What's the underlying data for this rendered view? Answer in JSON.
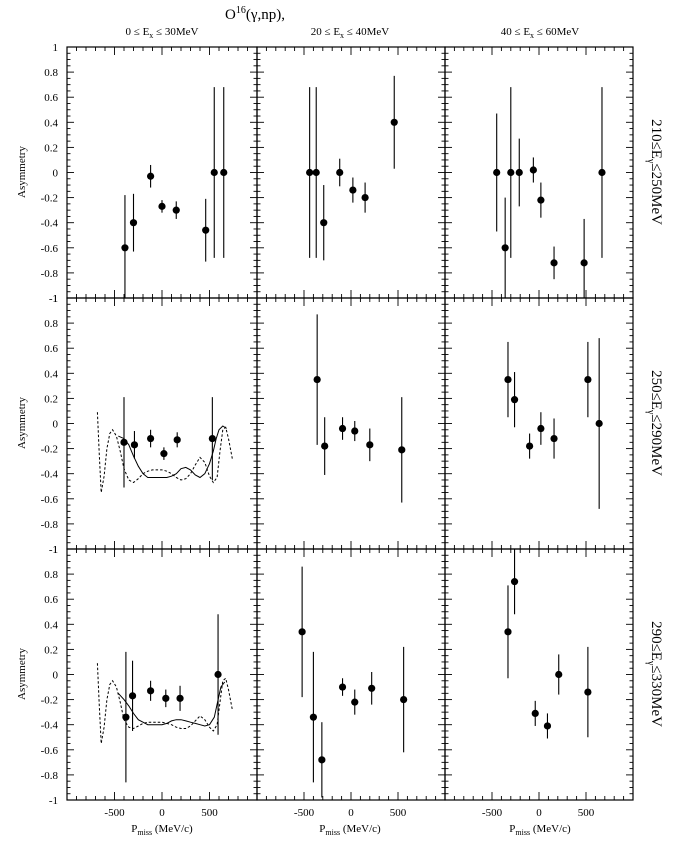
{
  "title": {
    "main": "O",
    "sup": "16",
    "rest": "(γ,np),"
  },
  "column_labels": [
    {
      "pre": "0 ≤ E",
      "sub": "x",
      "post": " ≤ 30MeV"
    },
    {
      "pre": "20 ≤ E",
      "sub": "x",
      "post": " ≤ 40MeV"
    },
    {
      "pre": "40 ≤ E",
      "sub": "x",
      "post": " ≤ 60MeV"
    }
  ],
  "row_labels": [
    {
      "pre": "210≤E",
      "sub": "γ",
      "post": "≤250MeV"
    },
    {
      "pre": "250≤E",
      "sub": "γ",
      "post": "≤290MeV"
    },
    {
      "pre": "290≤E",
      "sub": "γ",
      "post": "≤330MeV"
    }
  ],
  "y_axis_label": "Asymmetry",
  "x_axis_label": {
    "pre": "P",
    "sub": "miss",
    "post": " (MeV/c)"
  },
  "y_tick_labels": [
    "-1",
    "-0.8",
    "-0.6",
    "-0.4",
    "-0.2",
    "0",
    "0.2",
    "0.4",
    "0.6",
    "0.8",
    "1"
  ],
  "x_tick_labels": [
    "-500",
    "0",
    "500"
  ],
  "chart_data": {
    "type": "scatter",
    "xlabel": "Pmiss (MeV/c)",
    "ylabel": "Asymmetry",
    "xlim": [
      -1000,
      1000
    ],
    "ylim": [
      -1,
      1
    ],
    "grid": false,
    "panels": [
      {
        "row": 0,
        "col": 0,
        "points": [
          {
            "x": -390,
            "y": -0.6,
            "err": 0.42
          },
          {
            "x": -300,
            "y": -0.4,
            "err": 0.23
          },
          {
            "x": -120,
            "y": -0.03,
            "err": 0.09
          },
          {
            "x": 0,
            "y": -0.27,
            "err": 0.05
          },
          {
            "x": 150,
            "y": -0.3,
            "err": 0.07
          },
          {
            "x": 460,
            "y": -0.46,
            "err": 0.25
          },
          {
            "x": 550,
            "y": 0.0,
            "err": 0.68
          },
          {
            "x": 650,
            "y": 0.0,
            "err": 0.68
          }
        ]
      },
      {
        "row": 0,
        "col": 1,
        "points": [
          {
            "x": -440,
            "y": 0.0,
            "err": 0.68
          },
          {
            "x": -370,
            "y": 0.0,
            "err": 0.68
          },
          {
            "x": -290,
            "y": -0.4,
            "err": 0.3
          },
          {
            "x": -120,
            "y": 0.0,
            "err": 0.11
          },
          {
            "x": 20,
            "y": -0.14,
            "err": 0.1
          },
          {
            "x": 150,
            "y": -0.2,
            "err": 0.12
          },
          {
            "x": 460,
            "y": 0.4,
            "err": 0.37
          }
        ]
      },
      {
        "row": 0,
        "col": 2,
        "points": [
          {
            "x": -450,
            "y": 0.0,
            "err": 0.47
          },
          {
            "x": -360,
            "y": -0.6,
            "err": 0.4
          },
          {
            "x": -300,
            "y": 0.0,
            "err": 0.68
          },
          {
            "x": -210,
            "y": 0.0,
            "err": 0.27
          },
          {
            "x": -60,
            "y": 0.02,
            "err": 0.1
          },
          {
            "x": 20,
            "y": -0.22,
            "err": 0.14
          },
          {
            "x": 160,
            "y": -0.72,
            "err": 0.13
          },
          {
            "x": 480,
            "y": -0.72,
            "err": 0.35
          },
          {
            "x": 670,
            "y": 0.0,
            "err": 0.68
          }
        ]
      },
      {
        "row": 1,
        "col": 0,
        "points": [
          {
            "x": -400,
            "y": -0.15,
            "err": 0.36
          },
          {
            "x": -290,
            "y": -0.17,
            "err": 0.11
          },
          {
            "x": -120,
            "y": -0.12,
            "err": 0.07
          },
          {
            "x": 20,
            "y": -0.24,
            "err": 0.05
          },
          {
            "x": 160,
            "y": -0.13,
            "err": 0.06
          },
          {
            "x": 530,
            "y": -0.12,
            "err": 0.33
          }
        ]
      },
      {
        "row": 1,
        "col": 1,
        "points": [
          {
            "x": -360,
            "y": 0.35,
            "err": 0.52
          },
          {
            "x": -280,
            "y": -0.18,
            "err": 0.23
          },
          {
            "x": -90,
            "y": -0.04,
            "err": 0.09
          },
          {
            "x": 40,
            "y": -0.06,
            "err": 0.08
          },
          {
            "x": 200,
            "y": -0.17,
            "err": 0.13
          },
          {
            "x": 540,
            "y": -0.21,
            "err": 0.42
          }
        ]
      },
      {
        "row": 1,
        "col": 2,
        "points": [
          {
            "x": -330,
            "y": 0.35,
            "err": 0.3
          },
          {
            "x": -260,
            "y": 0.19,
            "err": 0.22
          },
          {
            "x": -100,
            "y": -0.18,
            "err": 0.1
          },
          {
            "x": 20,
            "y": -0.04,
            "err": 0.13
          },
          {
            "x": 160,
            "y": -0.12,
            "err": 0.16
          },
          {
            "x": 520,
            "y": 0.35,
            "err": 0.3
          },
          {
            "x": 640,
            "y": 0.0,
            "err": 0.68
          }
        ]
      },
      {
        "row": 2,
        "col": 0,
        "points": [
          {
            "x": -380,
            "y": -0.34,
            "err": 0.52
          },
          {
            "x": -310,
            "y": -0.17,
            "err": 0.28
          },
          {
            "x": -120,
            "y": -0.13,
            "err": 0.08
          },
          {
            "x": 40,
            "y": -0.19,
            "err": 0.07
          },
          {
            "x": 190,
            "y": -0.19,
            "err": 0.1
          },
          {
            "x": 590,
            "y": 0.0,
            "err": 0.48
          }
        ]
      },
      {
        "row": 2,
        "col": 1,
        "points": [
          {
            "x": -520,
            "y": 0.34,
            "err": 0.52
          },
          {
            "x": -400,
            "y": -0.34,
            "err": 0.52
          },
          {
            "x": -310,
            "y": -0.68,
            "err": 0.3
          },
          {
            "x": -90,
            "y": -0.1,
            "err": 0.07
          },
          {
            "x": 40,
            "y": -0.22,
            "err": 0.1
          },
          {
            "x": 220,
            "y": -0.11,
            "err": 0.13
          },
          {
            "x": 560,
            "y": -0.2,
            "err": 0.42
          }
        ]
      },
      {
        "row": 2,
        "col": 2,
        "points": [
          {
            "x": -330,
            "y": 0.34,
            "err": 0.37
          },
          {
            "x": -260,
            "y": 0.74,
            "err": 0.26
          },
          {
            "x": -40,
            "y": -0.31,
            "err": 0.1
          },
          {
            "x": 90,
            "y": -0.41,
            "err": 0.1
          },
          {
            "x": 210,
            "y": 0.0,
            "err": 0.16
          },
          {
            "x": 520,
            "y": -0.14,
            "err": 0.36
          }
        ]
      }
    ],
    "curves": [
      {
        "row": 1,
        "col": 0,
        "style": "solid",
        "x": [
          -460,
          -400,
          -350,
          -300,
          -250,
          -200,
          -150,
          -100,
          -50,
          0,
          50,
          100,
          150,
          200,
          250,
          300,
          350,
          400,
          450,
          500,
          540,
          570,
          600,
          640,
          680
        ],
        "y": [
          -0.1,
          -0.12,
          -0.17,
          -0.26,
          -0.34,
          -0.4,
          -0.43,
          -0.43,
          -0.43,
          -0.43,
          -0.43,
          -0.42,
          -0.4,
          -0.36,
          -0.35,
          -0.37,
          -0.41,
          -0.43,
          -0.4,
          -0.32,
          -0.22,
          -0.12,
          -0.05,
          -0.02,
          -0.04
        ]
      },
      {
        "row": 1,
        "col": 0,
        "style": "dashed",
        "x": [
          -680,
          -660,
          -640,
          -610,
          -580,
          -550,
          -520,
          -480,
          -440,
          -400,
          -350,
          -300,
          -250,
          -200,
          -150,
          -100,
          -50,
          0,
          50,
          100,
          150,
          200,
          250,
          300,
          350,
          400,
          450,
          500,
          540,
          580,
          610,
          640,
          670,
          700,
          740
        ],
        "y": [
          0.09,
          -0.25,
          -0.55,
          -0.42,
          -0.2,
          -0.08,
          -0.05,
          -0.1,
          -0.22,
          -0.36,
          -0.45,
          -0.47,
          -0.44,
          -0.4,
          -0.38,
          -0.37,
          -0.37,
          -0.37,
          -0.38,
          -0.4,
          -0.43,
          -0.45,
          -0.44,
          -0.4,
          -0.33,
          -0.27,
          -0.31,
          -0.42,
          -0.47,
          -0.43,
          -0.22,
          -0.05,
          -0.03,
          -0.12,
          -0.28
        ]
      },
      {
        "row": 2,
        "col": 0,
        "style": "solid",
        "x": [
          -460,
          -400,
          -350,
          -300,
          -250,
          -200,
          -150,
          -100,
          -50,
          0,
          50,
          100,
          150,
          200,
          250,
          300,
          350,
          400,
          450,
          500,
          550,
          590,
          620,
          660
        ],
        "y": [
          -0.15,
          -0.2,
          -0.25,
          -0.31,
          -0.36,
          -0.38,
          -0.4,
          -0.4,
          -0.4,
          -0.4,
          -0.39,
          -0.37,
          -0.36,
          -0.36,
          -0.37,
          -0.38,
          -0.39,
          -0.4,
          -0.41,
          -0.4,
          -0.34,
          -0.2,
          -0.1,
          -0.06
        ]
      },
      {
        "row": 2,
        "col": 0,
        "style": "dashed",
        "x": [
          -680,
          -660,
          -640,
          -610,
          -580,
          -550,
          -520,
          -480,
          -440,
          -400,
          -350,
          -300,
          -250,
          -200,
          -150,
          -100,
          -50,
          0,
          50,
          100,
          150,
          200,
          250,
          300,
          350,
          400,
          450,
          500,
          540,
          580,
          610,
          640,
          670,
          700,
          740
        ],
        "y": [
          0.09,
          -0.25,
          -0.55,
          -0.42,
          -0.2,
          -0.08,
          -0.05,
          -0.1,
          -0.22,
          -0.36,
          -0.42,
          -0.43,
          -0.41,
          -0.39,
          -0.38,
          -0.38,
          -0.38,
          -0.38,
          -0.39,
          -0.4,
          -0.42,
          -0.43,
          -0.43,
          -0.41,
          -0.37,
          -0.33,
          -0.36,
          -0.42,
          -0.45,
          -0.4,
          -0.22,
          -0.05,
          -0.03,
          -0.12,
          -0.28
        ]
      }
    ]
  }
}
